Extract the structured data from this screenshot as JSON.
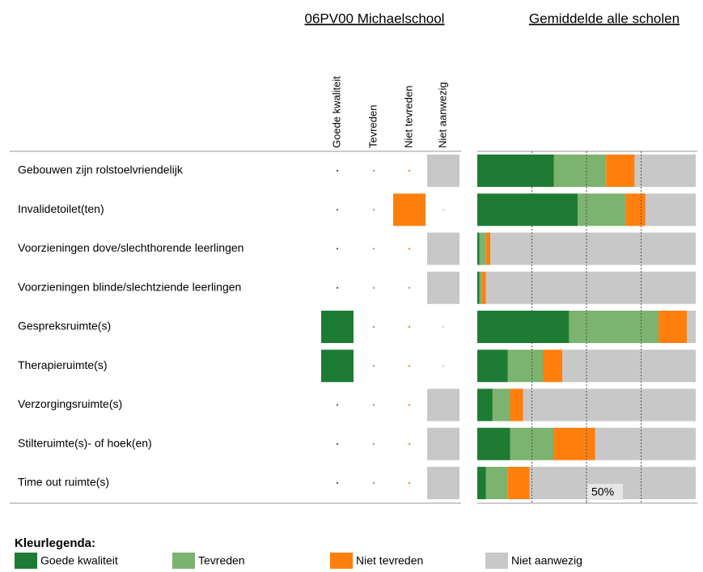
{
  "chart_data": {
    "type": "stacked-barh",
    "school_title": "06PV00 Michaelschool",
    "average_title": "Gemiddelde alle scholen",
    "legend_title": "Kleurlegenda:",
    "categories": [
      "Gebouwen zijn rolstoelvriendelijk",
      "Invalidetoilet(ten)",
      "Voorzieningen dove/slechthorende leerlingen",
      "Voorzieningen blinde/slechtziende leerlingen",
      "Gespreksruimte(s)",
      "Therapieruimte(s)",
      "Verzorgingsruimte(s)",
      "Stilteruimte(s)- of hoek(en)",
      "Time out ruimte(s)"
    ],
    "school_answers": [
      3,
      2,
      3,
      3,
      0,
      0,
      3,
      3,
      3
    ],
    "series": [
      {
        "name": "Goede kwaliteit",
        "color": "#1e7b34",
        "values": [
          35,
          46,
          1,
          1,
          42,
          14,
          7,
          15,
          4
        ]
      },
      {
        "name": "Tevreden",
        "color": "#7cb36e",
        "values": [
          24,
          22,
          3,
          1,
          41,
          16,
          8,
          20,
          10
        ]
      },
      {
        "name": "Niet tevreden",
        "color": "#ff7f0e",
        "values": [
          13,
          9,
          2,
          2,
          13,
          9,
          6,
          19,
          10
        ]
      },
      {
        "name": "Niet aanwezig",
        "color": "#c8c8c8",
        "values": [
          28,
          23,
          94,
          96,
          4,
          61,
          79,
          46,
          76
        ]
      }
    ],
    "xlim": [
      0,
      100
    ],
    "gridlines": [
      25,
      50,
      75
    ],
    "xticks": [
      {
        "value": 50,
        "label": "50%"
      }
    ]
  }
}
